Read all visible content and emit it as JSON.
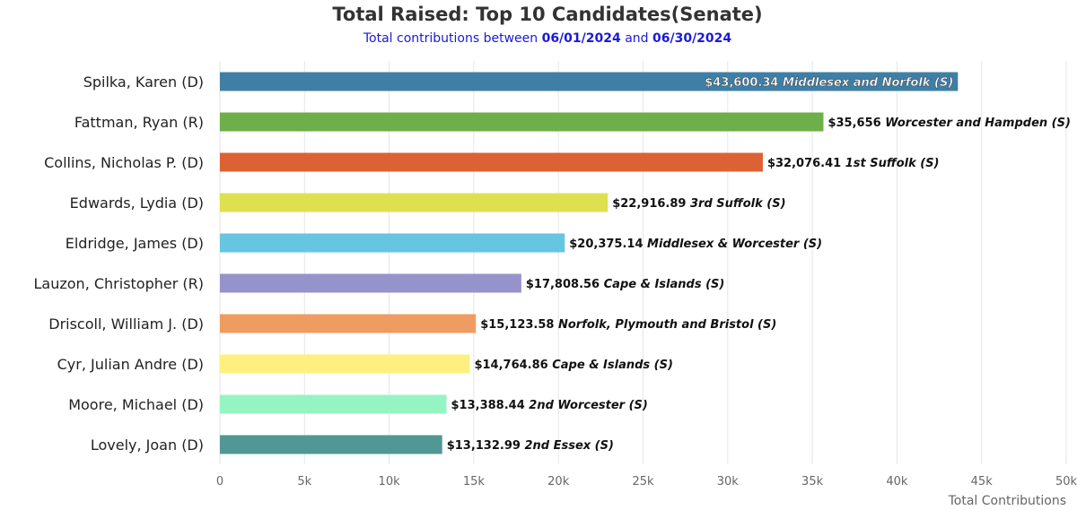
{
  "chart_data": {
    "type": "bar",
    "orientation": "horizontal",
    "title": "Total Raised: Top 10 Candidates(Senate)",
    "subtitle": {
      "prefix": "Total contributions between",
      "start_date": "06/01/2024",
      "joiner": "and",
      "end_date": "06/30/2024"
    },
    "xlabel": "Total Contributions",
    "ylabel": "",
    "xlim": [
      0,
      50000
    ],
    "ticks": [
      {
        "value": 0,
        "label": "0"
      },
      {
        "value": 5000,
        "label": "5k"
      },
      {
        "value": 10000,
        "label": "10k"
      },
      {
        "value": 15000,
        "label": "15k"
      },
      {
        "value": 20000,
        "label": "20k"
      },
      {
        "value": 25000,
        "label": "25k"
      },
      {
        "value": 30000,
        "label": "30k"
      },
      {
        "value": 35000,
        "label": "35k"
      },
      {
        "value": 40000,
        "label": "40k"
      },
      {
        "value": 45000,
        "label": "45k"
      },
      {
        "value": 50000,
        "label": "50k"
      }
    ],
    "grid": true,
    "categories": [
      "Spilka, Karen (D)",
      "Fattman, Ryan (R)",
      "Collins, Nicholas P. (D)",
      "Edwards, Lydia (D)",
      "Eldridge, James (D)",
      "Lauzon, Christopher (R)",
      "Driscoll, William J. (D)",
      "Cyr, Julian Andre (D)",
      "Moore, Michael (D)",
      "Lovely, Joan (D)"
    ],
    "values": [
      43600.34,
      35656,
      32076.41,
      22916.89,
      20375.14,
      17808.56,
      15123.58,
      14764.86,
      13388.44,
      13132.99
    ],
    "value_labels": [
      "$43,600.34",
      "$35,656",
      "$32,076.41",
      "$22,916.89",
      "$20,375.14",
      "$17,808.56",
      "$15,123.58",
      "$14,764.86",
      "$13,388.44",
      "$13,132.99"
    ],
    "districts": [
      "Middlesex and Norfolk (S)",
      "Worcester and Hampden (S)",
      "1st Suffolk (S)",
      "3rd Suffolk (S)",
      "Middlesex & Worcester (S)",
      "Cape & Islands (S)",
      "Norfolk, Plymouth and Bristol (S)",
      "Cape & Islands (S)",
      "2nd Worcester (S)",
      "2nd Essex (S)"
    ],
    "colors": [
      "#3f7fa6",
      "#6db04a",
      "#dc6235",
      "#dfe04f",
      "#66c5e0",
      "#9693cc",
      "#ef9c62",
      "#fdf07f",
      "#96f4c3",
      "#519795"
    ],
    "label_inside": [
      true,
      false,
      false,
      false,
      false,
      false,
      false,
      false,
      false,
      false
    ]
  }
}
